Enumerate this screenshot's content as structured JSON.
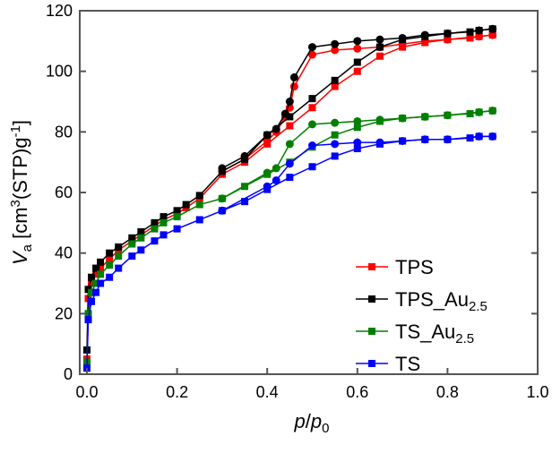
{
  "chart_data": {
    "type": "line",
    "xlabel": {
      "italic1": "p",
      "slash": "/",
      "italic2": "p",
      "sub": "0"
    },
    "ylabel": {
      "italic": "V",
      "sub": "a",
      "pre": " [cm",
      "sup": "3",
      "mid": "(STP)g",
      "sup2": "-1",
      "post": "]"
    },
    "xlim": [
      0,
      1.0
    ],
    "ylim": [
      0,
      120
    ],
    "xticks": [
      "0.0",
      "0.2",
      "0.4",
      "0.6",
      "0.8",
      "1.0"
    ],
    "yticks": [
      "0",
      "20",
      "40",
      "60",
      "80",
      "100",
      "120"
    ],
    "legend_position": "bottom-right",
    "series": [
      {
        "name": "TPS",
        "sub": "",
        "color": "#ff0000",
        "adsorption": [
          [
            0,
            5
          ],
          [
            0.003,
            25
          ],
          [
            0.01,
            30
          ],
          [
            0.02,
            33
          ],
          [
            0.03,
            35
          ],
          [
            0.05,
            38
          ],
          [
            0.07,
            41
          ],
          [
            0.1,
            44
          ],
          [
            0.12,
            46
          ],
          [
            0.15,
            49
          ],
          [
            0.17,
            51
          ],
          [
            0.2,
            53
          ],
          [
            0.22,
            55
          ],
          [
            0.25,
            58
          ],
          [
            0.3,
            66
          ],
          [
            0.35,
            70
          ],
          [
            0.4,
            76
          ],
          [
            0.45,
            82
          ],
          [
            0.5,
            88
          ],
          [
            0.55,
            95
          ],
          [
            0.6,
            100
          ],
          [
            0.65,
            105
          ],
          [
            0.7,
            108
          ],
          [
            0.75,
            109.5
          ],
          [
            0.8,
            110.5
          ],
          [
            0.85,
            111
          ],
          [
            0.87,
            111.5
          ],
          [
            0.9,
            112
          ]
        ],
        "desorption": [
          [
            0.9,
            112
          ],
          [
            0.87,
            111.5
          ],
          [
            0.8,
            110.5
          ],
          [
            0.75,
            110
          ],
          [
            0.7,
            109
          ],
          [
            0.65,
            108
          ],
          [
            0.6,
            107.5
          ],
          [
            0.55,
            107
          ],
          [
            0.5,
            105.5
          ],
          [
            0.46,
            95
          ],
          [
            0.45,
            88
          ],
          [
            0.44,
            85
          ],
          [
            0.42,
            80
          ],
          [
            0.4,
            77
          ],
          [
            0.35,
            71
          ],
          [
            0.3,
            67
          ]
        ]
      },
      {
        "name": "TPS_Au",
        "sub": "2.5",
        "color": "#000000",
        "adsorption": [
          [
            0,
            8
          ],
          [
            0.003,
            28
          ],
          [
            0.01,
            32
          ],
          [
            0.02,
            35
          ],
          [
            0.03,
            37
          ],
          [
            0.05,
            40
          ],
          [
            0.07,
            42
          ],
          [
            0.1,
            45
          ],
          [
            0.12,
            47
          ],
          [
            0.15,
            50
          ],
          [
            0.17,
            52
          ],
          [
            0.2,
            54
          ],
          [
            0.22,
            56
          ],
          [
            0.25,
            59
          ],
          [
            0.3,
            67
          ],
          [
            0.35,
            71
          ],
          [
            0.4,
            79
          ],
          [
            0.45,
            85
          ],
          [
            0.5,
            91
          ],
          [
            0.55,
            97
          ],
          [
            0.6,
            103
          ],
          [
            0.65,
            108
          ],
          [
            0.7,
            110.5
          ],
          [
            0.75,
            111.5
          ],
          [
            0.8,
            112.5
          ],
          [
            0.85,
            113
          ],
          [
            0.87,
            113.5
          ],
          [
            0.9,
            114
          ]
        ],
        "desorption": [
          [
            0.9,
            114
          ],
          [
            0.87,
            113.5
          ],
          [
            0.8,
            112.5
          ],
          [
            0.75,
            112
          ],
          [
            0.7,
            111
          ],
          [
            0.65,
            110.5
          ],
          [
            0.6,
            110
          ],
          [
            0.55,
            109
          ],
          [
            0.5,
            108
          ],
          [
            0.46,
            98
          ],
          [
            0.45,
            90
          ],
          [
            0.44,
            86
          ],
          [
            0.42,
            81
          ],
          [
            0.4,
            79
          ],
          [
            0.35,
            72
          ],
          [
            0.3,
            68
          ]
        ]
      },
      {
        "name": "TS_Au",
        "sub": "2.5",
        "color": "#008000",
        "adsorption": [
          [
            0,
            4
          ],
          [
            0.003,
            20
          ],
          [
            0.01,
            27
          ],
          [
            0.02,
            30
          ],
          [
            0.03,
            33
          ],
          [
            0.05,
            36
          ],
          [
            0.07,
            39
          ],
          [
            0.1,
            43
          ],
          [
            0.12,
            45
          ],
          [
            0.15,
            48
          ],
          [
            0.17,
            50
          ],
          [
            0.2,
            52
          ],
          [
            0.25,
            56
          ],
          [
            0.3,
            58
          ],
          [
            0.35,
            62
          ],
          [
            0.4,
            66
          ],
          [
            0.45,
            70
          ],
          [
            0.5,
            75
          ],
          [
            0.55,
            79
          ],
          [
            0.6,
            81.5
          ],
          [
            0.65,
            83.5
          ],
          [
            0.7,
            84.5
          ],
          [
            0.75,
            85
          ],
          [
            0.8,
            85.5
          ],
          [
            0.85,
            86
          ],
          [
            0.87,
            86.5
          ],
          [
            0.9,
            87
          ]
        ],
        "desorption": [
          [
            0.9,
            87
          ],
          [
            0.87,
            86.5
          ],
          [
            0.8,
            85.5
          ],
          [
            0.75,
            85
          ],
          [
            0.7,
            84.5
          ],
          [
            0.65,
            84
          ],
          [
            0.6,
            83.5
          ],
          [
            0.55,
            83
          ],
          [
            0.5,
            82.5
          ],
          [
            0.45,
            76
          ],
          [
            0.42,
            68
          ],
          [
            0.4,
            66.5
          ],
          [
            0.3,
            58
          ]
        ]
      },
      {
        "name": "TS",
        "sub": "",
        "color": "#0000ff",
        "adsorption": [
          [
            0,
            2
          ],
          [
            0.003,
            18
          ],
          [
            0.01,
            24
          ],
          [
            0.02,
            27
          ],
          [
            0.03,
            30
          ],
          [
            0.05,
            32
          ],
          [
            0.07,
            35
          ],
          [
            0.1,
            39
          ],
          [
            0.12,
            41
          ],
          [
            0.15,
            44
          ],
          [
            0.17,
            46
          ],
          [
            0.2,
            48
          ],
          [
            0.25,
            51
          ],
          [
            0.3,
            54
          ],
          [
            0.35,
            57
          ],
          [
            0.4,
            61
          ],
          [
            0.45,
            65
          ],
          [
            0.5,
            68.5
          ],
          [
            0.55,
            72
          ],
          [
            0.6,
            74.5
          ],
          [
            0.65,
            76
          ],
          [
            0.7,
            77
          ],
          [
            0.75,
            77.5
          ],
          [
            0.8,
            77.5
          ],
          [
            0.85,
            78
          ],
          [
            0.87,
            78.5
          ],
          [
            0.9,
            78.5
          ]
        ],
        "desorption": [
          [
            0.9,
            78.5
          ],
          [
            0.87,
            78.5
          ],
          [
            0.8,
            77.5
          ],
          [
            0.75,
            77.5
          ],
          [
            0.7,
            77
          ],
          [
            0.65,
            76.5
          ],
          [
            0.6,
            76.5
          ],
          [
            0.55,
            76
          ],
          [
            0.5,
            75.5
          ],
          [
            0.45,
            69.5
          ],
          [
            0.42,
            64
          ],
          [
            0.4,
            62
          ],
          [
            0.3,
            54
          ]
        ]
      }
    ]
  }
}
